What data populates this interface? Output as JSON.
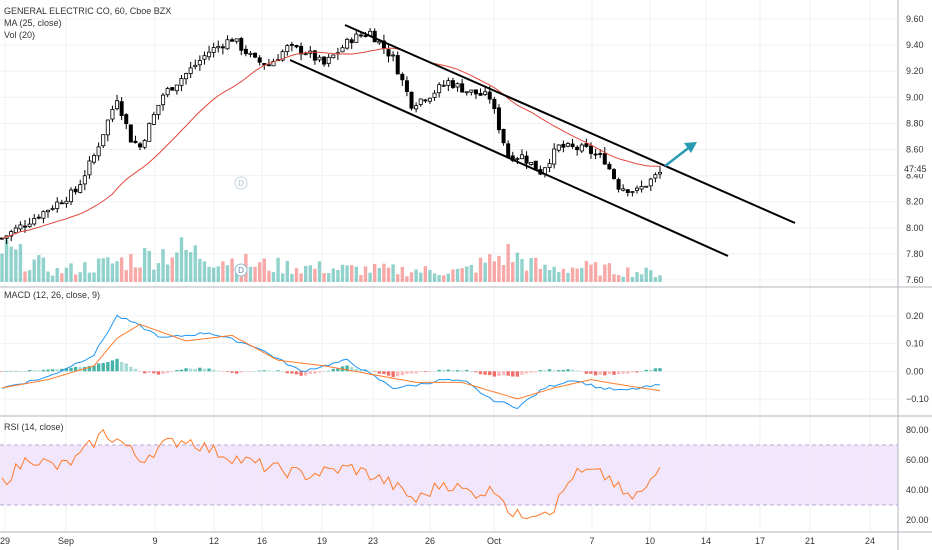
{
  "header": {
    "title": "GENERAL ELECTRIC CO, 60, Cboe BZX",
    "ma_label": "MA (25, close)",
    "vol_label": "Vol (20)",
    "macd_label": "MACD (12, 26, close, 9)",
    "rsi_label": "RSI (14, close)",
    "dividend_marker": "D",
    "price_badge": "8.40",
    "countdown_badge": "47:45"
  },
  "colors": {
    "up": "#26a69a",
    "down": "#ef5350",
    "candle_up_body": "#ffffff",
    "candle_stroke": "#000000",
    "ma": "#e2463b",
    "macd": "#2196f3",
    "signal": "#ff7b29",
    "rsi": "#ff7b29",
    "rsi_band": "#f0e4fb",
    "channel": "#000000",
    "arrow": "#2a9ab3"
  },
  "chart_data": [
    {
      "type": "candlestick",
      "panel": "price",
      "title": "GENERAL ELECTRIC CO, 60, Cboe BZX",
      "x_ticks": [
        "29",
        "Sep",
        "9",
        "12",
        "16",
        "19",
        "23",
        "26",
        "Oct",
        "7",
        "10",
        "14",
        "17",
        "21",
        "24"
      ],
      "y_ticks": [
        "9.60",
        "9.40",
        "9.20",
        "9.00",
        "8.80",
        "8.60",
        "8.40",
        "8.20",
        "8.00",
        "7.80",
        "7.60"
      ],
      "ylim": [
        7.6,
        9.6
      ],
      "grid": true,
      "bars_count": 144,
      "anchors_close": [
        [
          0,
          7.92
        ],
        [
          8,
          8.1
        ],
        [
          16,
          8.28
        ],
        [
          20,
          8.55
        ],
        [
          25,
          9.0
        ],
        [
          28,
          8.68
        ],
        [
          30,
          8.62
        ],
        [
          35,
          9.02
        ],
        [
          40,
          9.18
        ],
        [
          45,
          9.35
        ],
        [
          50,
          9.45
        ],
        [
          55,
          9.28
        ],
        [
          58,
          9.25
        ],
        [
          62,
          9.38
        ],
        [
          66,
          9.35
        ],
        [
          70,
          9.25
        ],
        [
          76,
          9.45
        ],
        [
          80,
          9.5
        ],
        [
          85,
          9.3
        ],
        [
          89,
          8.95
        ],
        [
          93,
          9.02
        ],
        [
          97,
          9.12
        ],
        [
          101,
          9.05
        ],
        [
          106,
          9.0
        ],
        [
          110,
          8.55
        ],
        [
          113,
          8.55
        ],
        [
          117,
          8.43
        ],
        [
          121,
          8.62
        ],
        [
          127,
          8.6
        ],
        [
          131,
          8.52
        ],
        [
          134,
          8.32
        ],
        [
          138,
          8.28
        ],
        [
          143,
          8.42
        ]
      ],
      "series": [
        {
          "name": "MA (25, close)",
          "values_from": "moving average of closes, period 25"
        }
      ],
      "annotations": [
        "descending channel",
        "breakout arrow",
        "dividend marker D"
      ]
    },
    {
      "type": "bar",
      "panel": "volume",
      "series": [
        {
          "name": "Vol (20)"
        }
      ],
      "profile_anchors": [
        [
          0,
          0.75
        ],
        [
          12,
          0.25
        ],
        [
          24,
          0.45
        ],
        [
          27,
          0.5
        ],
        [
          38,
          0.75
        ],
        [
          55,
          0.4
        ],
        [
          75,
          0.3
        ],
        [
          100,
          0.25
        ],
        [
          110,
          0.65
        ],
        [
          118,
          0.3
        ],
        [
          125,
          0.35
        ],
        [
          143,
          0.2
        ]
      ]
    },
    {
      "type": "line",
      "panel": "macd",
      "title": "MACD (12, 26, close, 9)",
      "y_ticks": [
        "0.20",
        "0.10",
        "0.00",
        "−0.10"
      ],
      "ylim": [
        -0.14,
        0.24
      ],
      "series": [
        {
          "name": "MACD",
          "anchors": [
            [
              0,
              -0.06
            ],
            [
              10,
              -0.02
            ],
            [
              20,
              0.06
            ],
            [
              25,
              0.2
            ],
            [
              28,
              0.18
            ],
            [
              35,
              0.12
            ],
            [
              45,
              0.14
            ],
            [
              55,
              0.09
            ],
            [
              65,
              0.0
            ],
            [
              75,
              0.04
            ],
            [
              85,
              -0.06
            ],
            [
              90,
              -0.05
            ],
            [
              96,
              -0.03
            ],
            [
              101,
              -0.04
            ],
            [
              106,
              -0.1
            ],
            [
              112,
              -0.13
            ],
            [
              118,
              -0.06
            ],
            [
              124,
              -0.03
            ],
            [
              130,
              -0.06
            ],
            [
              135,
              -0.07
            ],
            [
              143,
              -0.05
            ]
          ]
        },
        {
          "name": "Signal",
          "anchors": [
            [
              0,
              -0.06
            ],
            [
              10,
              -0.03
            ],
            [
              20,
              0.02
            ],
            [
              25,
              0.12
            ],
            [
              30,
              0.17
            ],
            [
              40,
              0.11
            ],
            [
              50,
              0.13
            ],
            [
              60,
              0.04
            ],
            [
              70,
              0.02
            ],
            [
              80,
              -0.01
            ],
            [
              90,
              -0.04
            ],
            [
              100,
              -0.04
            ],
            [
              106,
              -0.07
            ],
            [
              112,
              -0.1
            ],
            [
              120,
              -0.06
            ],
            [
              128,
              -0.03
            ],
            [
              135,
              -0.05
            ],
            [
              143,
              -0.07
            ]
          ]
        }
      ]
    },
    {
      "type": "line",
      "panel": "rsi",
      "title": "RSI (14, close)",
      "y_ticks": [
        "80.00",
        "60.00",
        "40.00",
        "20.00"
      ],
      "ylim": [
        15,
        85
      ],
      "band": [
        30,
        70
      ],
      "series": [
        {
          "name": "RSI",
          "anchors": [
            [
              0,
              45
            ],
            [
              6,
              62
            ],
            [
              12,
              55
            ],
            [
              16,
              60
            ],
            [
              22,
              78
            ],
            [
              26,
              72
            ],
            [
              30,
              60
            ],
            [
              35,
              70
            ],
            [
              40,
              74
            ],
            [
              46,
              66
            ],
            [
              52,
              60
            ],
            [
              58,
              55
            ],
            [
              66,
              50
            ],
            [
              76,
              55
            ],
            [
              84,
              45
            ],
            [
              90,
              33
            ],
            [
              96,
              45
            ],
            [
              102,
              38
            ],
            [
              108,
              40
            ],
            [
              111,
              22
            ],
            [
              116,
              26
            ],
            [
              120,
              28
            ],
            [
              124,
              50
            ],
            [
              128,
              52
            ],
            [
              132,
              48
            ],
            [
              136,
              34
            ],
            [
              140,
              40
            ],
            [
              143,
              55
            ]
          ]
        }
      ]
    }
  ]
}
